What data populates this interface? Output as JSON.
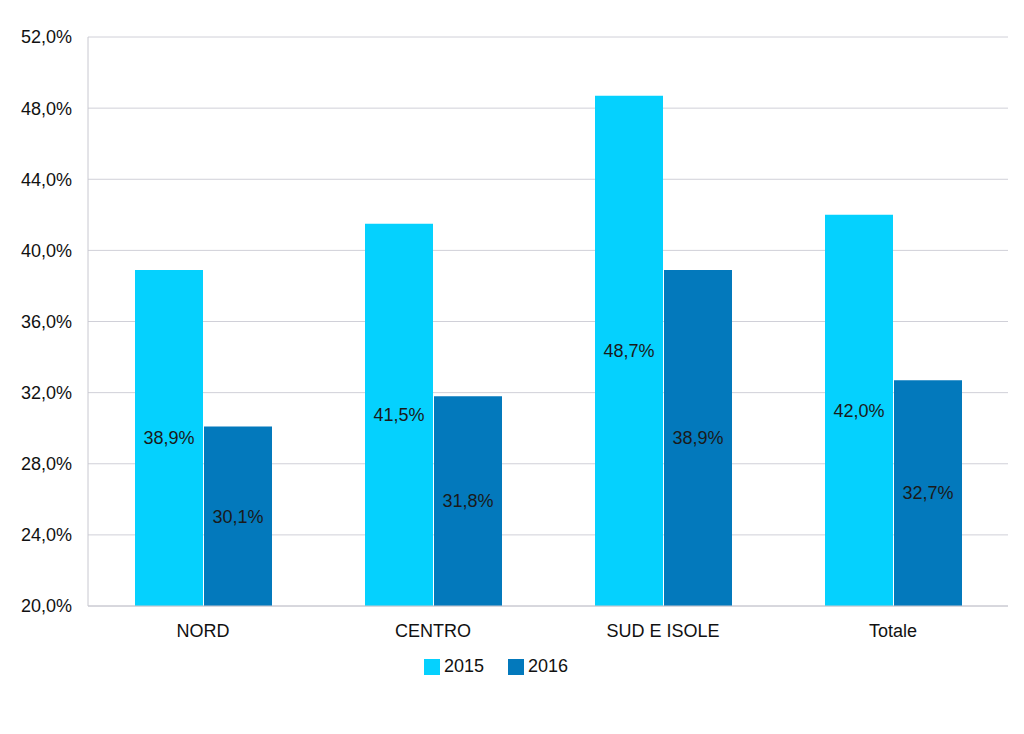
{
  "chart_data": {
    "type": "bar",
    "categories": [
      "NORD",
      "CENTRO",
      "SUD E ISOLE",
      "Totale"
    ],
    "series": [
      {
        "name": "2015",
        "color": "#05d1fe",
        "values": [
          38.9,
          41.5,
          48.7,
          42.0
        ],
        "value_labels": [
          "38,9%",
          "41,5%",
          "48,7%",
          "42,0%"
        ]
      },
      {
        "name": "2016",
        "color": "#0379bc",
        "values": [
          30.1,
          31.8,
          38.9,
          32.7
        ],
        "value_labels": [
          "30,1%",
          "31,8%",
          "38,9%",
          "32,7%"
        ]
      }
    ],
    "ylim": [
      20,
      52
    ],
    "yticks": [
      {
        "value": 20,
        "label": "20,0%"
      },
      {
        "value": 24,
        "label": "24,0%"
      },
      {
        "value": 28,
        "label": "28,0%"
      },
      {
        "value": 32,
        "label": "32,0%"
      },
      {
        "value": 36,
        "label": "36,0%"
      },
      {
        "value": 40,
        "label": "40,0%"
      },
      {
        "value": 44,
        "label": "44,0%"
      },
      {
        "value": 48,
        "label": "48,0%"
      },
      {
        "value": 52,
        "label": "52,0%"
      }
    ],
    "grid": true,
    "legend": "bottom",
    "data_labels": true
  }
}
